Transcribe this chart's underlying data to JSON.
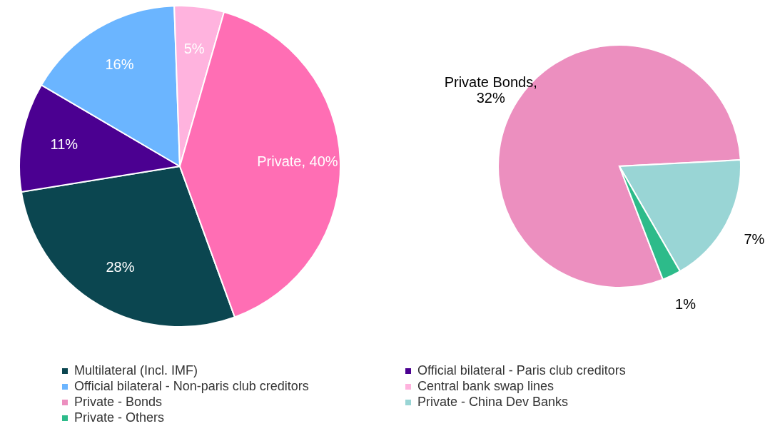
{
  "chart_data": [
    {
      "type": "pie",
      "categories": [
        "Multilateral (Incl. IMF)",
        "Official bilateral - Paris club creditors",
        "Official bilateral - Non-paris club creditors",
        "Central bank swap lines",
        "Private"
      ],
      "values": [
        28,
        11,
        16,
        5,
        40
      ],
      "colors": [
        "#0b4650",
        "#4b0091",
        "#6bb5ff",
        "#ffb3de",
        "#ff6eb4"
      ],
      "value_labels": [
        "28%",
        "11%",
        "16%",
        "5%",
        "40%"
      ],
      "legend": "bottom"
    },
    {
      "type": "pie",
      "categories": [
        "Private - Bonds",
        "Private - China Dev Banks",
        "Private - Others"
      ],
      "values": [
        32,
        7,
        1
      ],
      "colors": [
        "#ec8fbf",
        "#99d5d5",
        "#2dbb8a"
      ],
      "value_labels": [
        "Private Bonds, 32%",
        "7%",
        "1%"
      ],
      "legend": "bottom"
    }
  ]
}
